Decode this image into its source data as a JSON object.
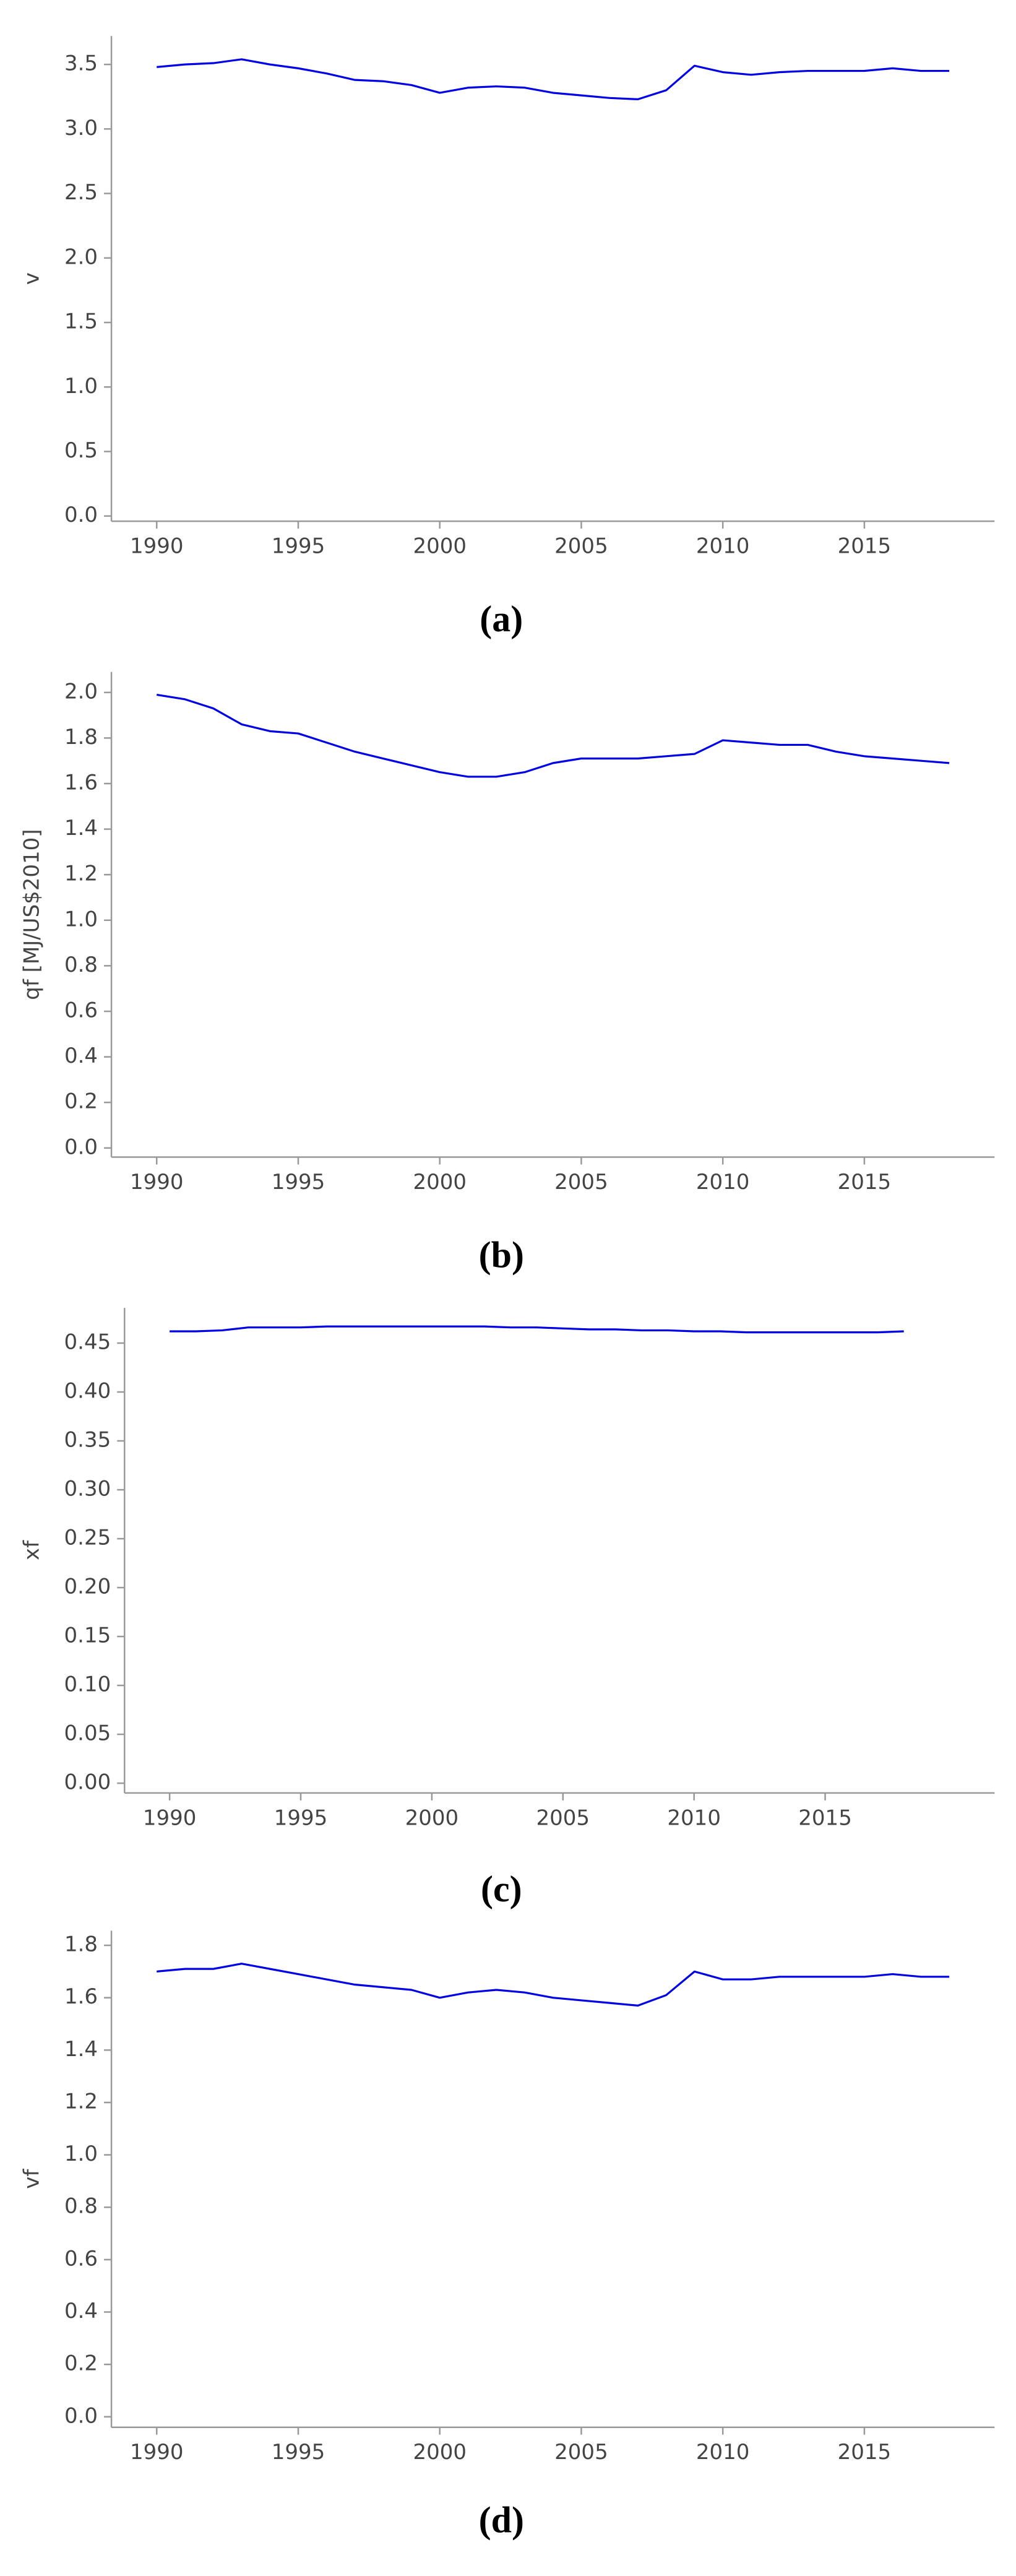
{
  "chart_data": [
    {
      "type": "line",
      "y_label": "v",
      "caption": "(a)",
      "color": "#0000e6",
      "x": [
        1990,
        1991,
        1992,
        1993,
        1994,
        1995,
        1996,
        1997,
        1998,
        1999,
        2000,
        2001,
        2002,
        2003,
        2004,
        2005,
        2006,
        2007,
        2008,
        2009,
        2010,
        2011,
        2012,
        2013,
        2014,
        2015,
        2016,
        2017,
        2018
      ],
      "values": [
        3.48,
        3.5,
        3.51,
        3.54,
        3.5,
        3.47,
        3.43,
        3.38,
        3.37,
        3.34,
        3.28,
        3.32,
        3.33,
        3.32,
        3.28,
        3.26,
        3.24,
        3.23,
        3.3,
        3.49,
        3.44,
        3.42,
        3.44,
        3.45,
        3.45,
        3.45,
        3.47,
        3.45,
        3.45
      ],
      "xlim": [
        1988.4,
        2019.6
      ],
      "xticks": [
        1990,
        1995,
        2000,
        2005,
        2010,
        2015
      ],
      "ylim": [
        -0.04,
        3.72
      ],
      "yticks": [
        {
          "value": 0,
          "label": "0.0"
        },
        0.5,
        {
          "value": 1,
          "label": "1.0"
        },
        1.5,
        {
          "value": 2,
          "label": "2.0"
        },
        2.5,
        {
          "value": 3,
          "label": "3.0"
        },
        3.5
      ]
    },
    {
      "type": "line",
      "y_label": "qf [MJ/US$2010]",
      "caption": "(b)",
      "color": "#0000e6",
      "x": [
        1990,
        1991,
        1992,
        1993,
        1994,
        1995,
        1996,
        1997,
        1998,
        1999,
        2000,
        2001,
        2002,
        2003,
        2004,
        2005,
        2006,
        2007,
        2008,
        2009,
        2010,
        2011,
        2012,
        2013,
        2014,
        2015,
        2016,
        2017,
        2018
      ],
      "values": [
        1.99,
        1.97,
        1.93,
        1.86,
        1.83,
        1.82,
        1.78,
        1.74,
        1.71,
        1.68,
        1.65,
        1.63,
        1.63,
        1.65,
        1.69,
        1.71,
        1.71,
        1.71,
        1.72,
        1.73,
        1.79,
        1.78,
        1.77,
        1.77,
        1.74,
        1.72,
        1.71,
        1.7,
        1.69
      ],
      "xlim": [
        1988.4,
        2019.6
      ],
      "xticks": [
        1990,
        1995,
        2000,
        2005,
        2010,
        2015
      ],
      "ylim": [
        -0.04,
        2.09
      ],
      "yticks": [
        {
          "value": 0,
          "label": "0.0"
        },
        0.2,
        0.4,
        0.6,
        0.8,
        {
          "value": 1,
          "label": "1.0"
        },
        1.2,
        1.4,
        1.6,
        1.8,
        {
          "value": 2,
          "label": "2.0"
        }
      ]
    },
    {
      "type": "line",
      "y_label": "xf",
      "caption": "(c)",
      "color": "#0000e6",
      "x": [
        1990,
        1991,
        1992,
        1993,
        1994,
        1995,
        1996,
        1997,
        1998,
        1999,
        2000,
        2001,
        2002,
        2003,
        2004,
        2005,
        2006,
        2007,
        2008,
        2009,
        2010,
        2011,
        2012,
        2013,
        2014,
        2015,
        2016,
        2017,
        2018
      ],
      "values": [
        0.462,
        0.462,
        0.463,
        0.466,
        0.466,
        0.466,
        0.467,
        0.467,
        0.467,
        0.467,
        0.467,
        0.467,
        0.467,
        0.466,
        0.466,
        0.465,
        0.464,
        0.464,
        0.463,
        0.463,
        0.462,
        0.462,
        0.461,
        0.461,
        0.461,
        0.461,
        0.461,
        0.461,
        0.462
      ],
      "xlim": [
        1988.28,
        2021.46
      ],
      "xticks": [
        1990,
        1995,
        2000,
        2005,
        2010,
        2015
      ],
      "ylim": [
        -0.01,
        0.486
      ],
      "yticks": [
        {
          "value": 0,
          "label": "0.00"
        },
        0.05,
        {
          "value": 0.1,
          "label": "0.10"
        },
        0.15,
        {
          "value": 0.2,
          "label": "0.20"
        },
        0.25,
        {
          "value": 0.3,
          "label": "0.30"
        },
        0.35,
        {
          "value": 0.4,
          "label": "0.40"
        },
        0.45
      ]
    },
    {
      "type": "line",
      "y_label": "vf",
      "caption": "(d)",
      "color": "#0000e6",
      "x": [
        1990,
        1991,
        1992,
        1993,
        1994,
        1995,
        1996,
        1997,
        1998,
        1999,
        2000,
        2001,
        2002,
        2003,
        2004,
        2005,
        2006,
        2007,
        2008,
        2009,
        2010,
        2011,
        2012,
        2013,
        2014,
        2015,
        2016,
        2017,
        2018
      ],
      "values": [
        1.7,
        1.71,
        1.71,
        1.73,
        1.71,
        1.69,
        1.67,
        1.65,
        1.64,
        1.63,
        1.6,
        1.62,
        1.63,
        1.62,
        1.6,
        1.59,
        1.58,
        1.57,
        1.61,
        1.7,
        1.67,
        1.67,
        1.68,
        1.68,
        1.68,
        1.68,
        1.69,
        1.68,
        1.68
      ],
      "xlim": [
        1988.4,
        2019.6
      ],
      "xticks": [
        1990,
        1995,
        2000,
        2005,
        2010,
        2015
      ],
      "ylim": [
        -0.04,
        1.856
      ],
      "yticks": [
        {
          "value": 0,
          "label": "0.0"
        },
        0.2,
        0.4,
        0.6,
        0.8,
        {
          "value": 1,
          "label": "1.0"
        },
        1.2,
        1.4,
        1.6,
        1.8
      ]
    }
  ]
}
